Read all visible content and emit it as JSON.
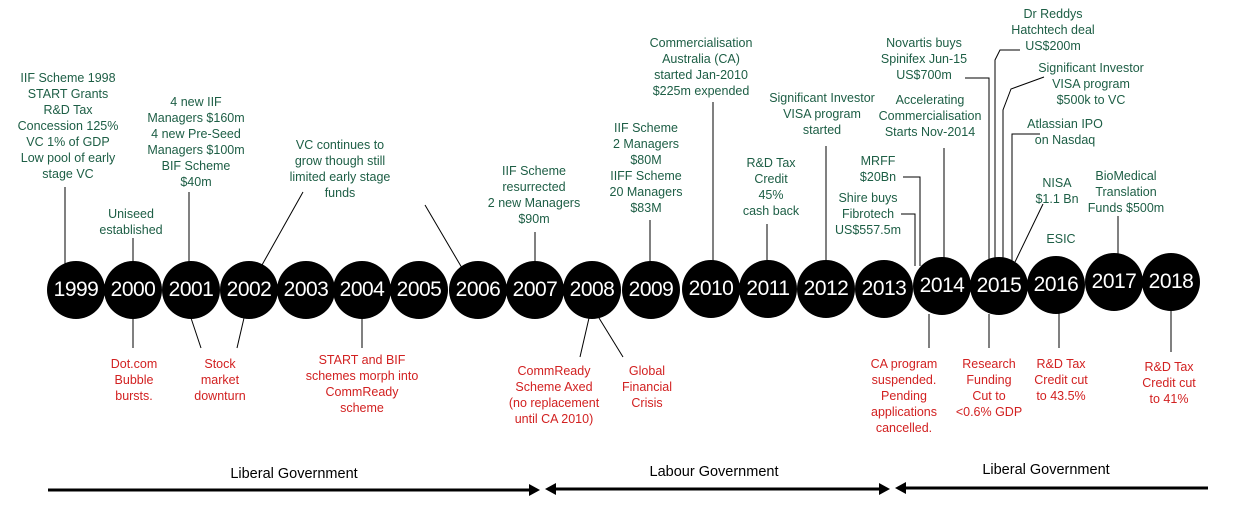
{
  "years": [
    "1999",
    "2000",
    "2001",
    "2002",
    "2003",
    "2004",
    "2005",
    "2006",
    "2007",
    "2008",
    "2009",
    "2010",
    "2011",
    "2012",
    "2013",
    "2014",
    "2015",
    "2016",
    "2017",
    "2018"
  ],
  "events_above": [
    {
      "id": "a1999",
      "text": "IIF Scheme 1998\nSTART Grants\nR&D Tax\nConcession 125%\nVC 1% of GDP\nLow pool of early\nstage VC"
    },
    {
      "id": "a2000",
      "text": "Uniseed\nestablished"
    },
    {
      "id": "a2001",
      "text": "4 new IIF\nManagers $160m\n4 new Pre-Seed\nManagers $100m\nBIF Scheme\n$40m"
    },
    {
      "id": "a2002",
      "text": "VC continues to\ngrow though still\nlimited early stage\nfunds"
    },
    {
      "id": "a2007",
      "text": "IIF Scheme\nresurrected\n2 new Managers\n$90m"
    },
    {
      "id": "a2009",
      "text": "IIF Scheme\n2 Managers\n$80M\nIIFF Scheme\n20 Managers\n$83M"
    },
    {
      "id": "a2010",
      "text": "Commercialisation\nAustralia (CA)\nstarted Jan-2010\n$225m expended"
    },
    {
      "id": "a2011",
      "text": "R&D Tax\nCredit\n45%\ncash back"
    },
    {
      "id": "a2012",
      "text": "Significant Investor\nVISA program\nstarted"
    },
    {
      "id": "a_shire",
      "text": "Shire buys\nFibrotech\nUS$557.5m"
    },
    {
      "id": "a_mrff",
      "text": "MRFF\n$20Bn"
    },
    {
      "id": "a_accel",
      "text": "Accelerating\nCommercialisation\nStarts Nov-2014"
    },
    {
      "id": "a_novartis",
      "text": "Novartis buys\nSpinifex Jun-15\nUS$700m"
    },
    {
      "id": "a_reddys",
      "text": "Dr Reddys\nHatchtech deal\nUS$200m"
    },
    {
      "id": "a_siv",
      "text": "Significant Investor\nVISA program\n$500k to VC"
    },
    {
      "id": "a_atlassian",
      "text": "Atlassian IPO\non Nasdaq"
    },
    {
      "id": "a_nisa",
      "text": "NISA\n$1.1 Bn"
    },
    {
      "id": "a_esic",
      "text": "ESIC"
    },
    {
      "id": "a_biomed",
      "text": "BioMedical\nTranslation\nFunds $500m"
    }
  ],
  "events_below": [
    {
      "id": "b2000",
      "text": "Dot.com\nBubble\nbursts."
    },
    {
      "id": "b2001",
      "text": "Stock\nmarket\ndownturn"
    },
    {
      "id": "b2004",
      "text": "START and BIF\nschemes morph into\nCommReady\nscheme"
    },
    {
      "id": "b_commready",
      "text": "CommReady\nScheme Axed\n(no replacement\nuntil CA 2010)"
    },
    {
      "id": "b_gfc",
      "text": "Global\nFinancial\nCrisis"
    },
    {
      "id": "b2014",
      "text": "CA program\nsuspended.\nPending\napplications\ncancelled."
    },
    {
      "id": "b2015",
      "text": "Research\nFunding\nCut to\n<0.6% GDP"
    },
    {
      "id": "b2016",
      "text": "R&D Tax\nCredit cut\nto 43.5%"
    },
    {
      "id": "b2018",
      "text": "R&D Tax\nCredit cut\nto 41%"
    }
  ],
  "governments": [
    {
      "id": "gov1",
      "label": "Liberal Government"
    },
    {
      "id": "gov2",
      "label": "Labour Government"
    },
    {
      "id": "gov3",
      "label": "Liberal Government"
    }
  ],
  "colors": {
    "above": "#1d5e45",
    "below": "#d22121",
    "circle": "#000000",
    "line": "#000000"
  }
}
